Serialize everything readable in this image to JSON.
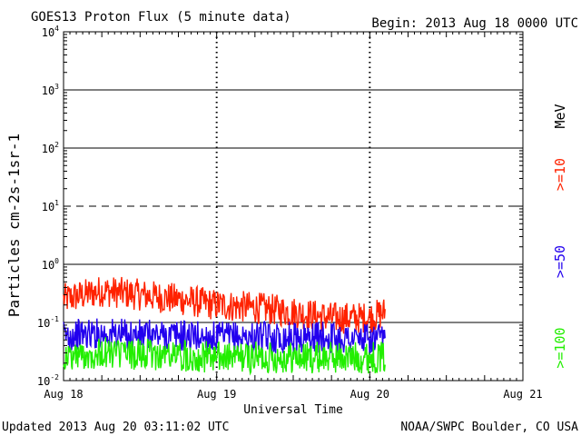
{
  "header": {
    "title": "GOES13 Proton Flux (5 minute data)",
    "begin": "Begin: 2013 Aug 18 0000 UTC"
  },
  "footer": {
    "updated": "Updated 2013 Aug 20 03:11:02 UTC",
    "source": "NOAA/SWPC Boulder, CO USA"
  },
  "chart_data": {
    "type": "line",
    "title": "GOES13 Proton Flux (5 minute data)",
    "xlabel": "Universal Time",
    "ylabel": "Particles cm-2s-1sr-1",
    "yscale": "log",
    "ylim": [
      0.01,
      10000
    ],
    "xlim": [
      0,
      3
    ],
    "x_unit": "days since Aug 18 0000 UTC",
    "x_ticks": [
      "Aug 18",
      "Aug 19",
      "Aug 20",
      "Aug 21"
    ],
    "y_ticks": [
      {
        "base": "10",
        "exp": "-2"
      },
      {
        "base": "10",
        "exp": "-1"
      },
      {
        "base": "10",
        "exp": "0"
      },
      {
        "base": "10",
        "exp": "1"
      },
      {
        "base": "10",
        "exp": "2"
      },
      {
        "base": "10",
        "exp": "3"
      },
      {
        "base": "10",
        "exp": "4"
      }
    ],
    "threshold_lines": [
      {
        "value": 10,
        "style": "dashed"
      }
    ],
    "legend_position": "right",
    "legend_unit": "MeV",
    "grid": true,
    "series": [
      {
        "name": ">=10",
        "color": "#ff2200",
        "x": [
          0,
          0.25,
          0.5,
          0.75,
          1.0,
          1.25,
          1.5,
          1.75,
          2.0,
          2.1
        ],
        "y": [
          0.25,
          0.35,
          0.3,
          0.25,
          0.2,
          0.18,
          0.15,
          0.12,
          0.12,
          0.15
        ]
      },
      {
        "name": ">=50",
        "color": "#2200ee",
        "x": [
          0,
          0.25,
          0.5,
          0.75,
          1.0,
          1.25,
          1.5,
          1.75,
          2.0,
          2.1
        ],
        "y": [
          0.06,
          0.065,
          0.06,
          0.06,
          0.055,
          0.055,
          0.055,
          0.055,
          0.05,
          0.05
        ]
      },
      {
        "name": ">=100",
        "color": "#22ee00",
        "x": [
          0,
          0.25,
          0.5,
          0.75,
          1.0,
          1.25,
          1.5,
          1.75,
          2.0,
          2.1
        ],
        "y": [
          0.025,
          0.03,
          0.028,
          0.027,
          0.025,
          0.025,
          0.025,
          0.025,
          0.025,
          0.025
        ]
      }
    ]
  }
}
